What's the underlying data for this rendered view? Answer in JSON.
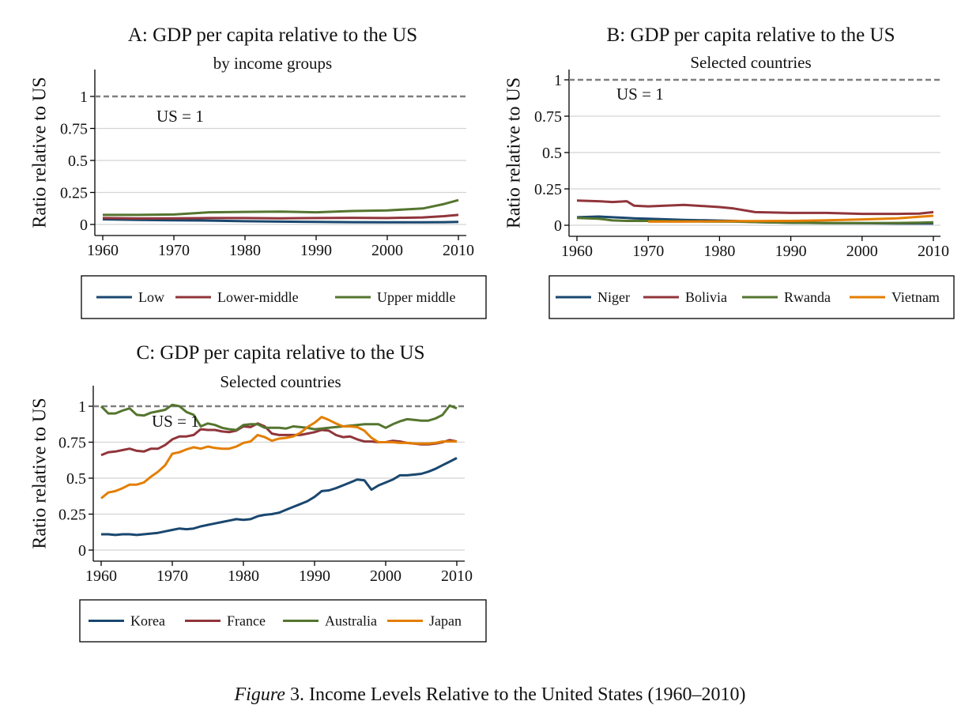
{
  "caption": {
    "italic": "Figure",
    "rest": " 3. Income Levels Relative to the United States (1960–2010)"
  },
  "colors": {
    "blue": "#1a476f",
    "red": "#90353b",
    "green": "#55752f",
    "orange": "#e37e00",
    "ref": "#7f7f7f"
  },
  "chart_data": [
    {
      "type": "line",
      "title": "A: GDP per capita relative to the US",
      "subtitle": "by income groups",
      "ylabel": "Ratio relative to US",
      "xlabel": "",
      "xlim": [
        1960,
        2010
      ],
      "ylim": [
        0,
        1.2
      ],
      "xticks": [
        "1960",
        "1970",
        "1980",
        "1990",
        "2000",
        "2010"
      ],
      "yticks": [
        "0",
        "0.25",
        "0.5",
        "0.75",
        "1"
      ],
      "reference_line": {
        "y": 1,
        "label": "US = 1"
      },
      "legend": "bottom",
      "x": [
        1960,
        1965,
        1970,
        1975,
        1980,
        1985,
        1990,
        1995,
        2000,
        2005,
        2008,
        2010
      ],
      "series": [
        {
          "name": "Low",
          "color": "#1a476f",
          "values": [
            0.04,
            0.035,
            0.033,
            0.03,
            0.025,
            0.022,
            0.02,
            0.018,
            0.017,
            0.017,
            0.018,
            0.02
          ]
        },
        {
          "name": "Lower-middle",
          "color": "#90353b",
          "values": [
            0.05,
            0.047,
            0.048,
            0.05,
            0.05,
            0.048,
            0.05,
            0.052,
            0.05,
            0.055,
            0.065,
            0.075
          ]
        },
        {
          "name": "Upper middle",
          "color": "#55752f",
          "values": [
            0.075,
            0.075,
            0.078,
            0.095,
            0.098,
            0.1,
            0.095,
            0.105,
            0.11,
            0.125,
            0.16,
            0.19
          ]
        }
      ]
    },
    {
      "type": "line",
      "title": "B: GDP per capita relative to the US",
      "subtitle": "Selected countries",
      "ylabel": "Ratio relative to US",
      "xlabel": "",
      "xlim": [
        1960,
        2010
      ],
      "ylim": [
        0,
        1
      ],
      "xticks": [
        "1960",
        "1970",
        "1980",
        "1990",
        "2000",
        "2010"
      ],
      "yticks": [
        "0",
        "0.25",
        "0.5",
        "0.75",
        "1"
      ],
      "reference_line": {
        "y": 1,
        "label": "US = 1"
      },
      "legend": "bottom",
      "x": [
        1960,
        1963,
        1965,
        1967,
        1968,
        1970,
        1975,
        1980,
        1982,
        1985,
        1990,
        1995,
        2000,
        2005,
        2008,
        2010
      ],
      "series": [
        {
          "name": "Niger",
          "color": "#1a476f",
          "values": [
            0.055,
            0.06,
            0.055,
            0.05,
            0.048,
            0.045,
            0.037,
            0.032,
            0.03,
            0.022,
            0.017,
            0.015,
            0.014,
            0.012,
            0.012,
            0.012
          ]
        },
        {
          "name": "Bolivia",
          "color": "#90353b",
          "values": [
            0.17,
            0.165,
            0.16,
            0.165,
            0.135,
            0.13,
            0.14,
            0.125,
            0.115,
            0.09,
            0.085,
            0.085,
            0.078,
            0.078,
            0.08,
            0.09
          ]
        },
        {
          "name": "Rwanda",
          "color": "#55752f",
          "values": [
            0.05,
            0.045,
            0.033,
            0.03,
            0.03,
            0.03,
            0.027,
            0.025,
            0.025,
            0.022,
            0.018,
            0.015,
            0.015,
            0.016,
            0.018,
            0.02
          ]
        },
        {
          "name": "Vietnam",
          "color": "#e37e00",
          "values": [
            null,
            null,
            null,
            null,
            null,
            0.025,
            0.025,
            0.027,
            0.028,
            0.028,
            0.03,
            0.034,
            0.04,
            0.048,
            0.058,
            0.065
          ]
        }
      ]
    },
    {
      "type": "line",
      "title": "C: GDP per capita relative to the US",
      "subtitle": "Selected countries",
      "ylabel": "Ratio relative to US",
      "xlabel": "",
      "xlim": [
        1960,
        2010
      ],
      "ylim": [
        0,
        1.05
      ],
      "xticks": [
        "1960",
        "1970",
        "1980",
        "1990",
        "2000",
        "2010"
      ],
      "yticks": [
        "0",
        "0.25",
        "0.5",
        "0.75",
        "1"
      ],
      "reference_line": {
        "y": 1,
        "label": "US = 1"
      },
      "legend": "bottom",
      "x": [
        1960,
        1961,
        1962,
        1963,
        1964,
        1965,
        1966,
        1967,
        1968,
        1969,
        1970,
        1971,
        1972,
        1973,
        1974,
        1975,
        1976,
        1977,
        1978,
        1979,
        1980,
        1981,
        1982,
        1983,
        1984,
        1985,
        1986,
        1987,
        1988,
        1989,
        1990,
        1991,
        1992,
        1993,
        1994,
        1995,
        1996,
        1997,
        1998,
        1999,
        2000,
        2001,
        2002,
        2003,
        2004,
        2005,
        2006,
        2007,
        2008,
        2009,
        2010
      ],
      "series": [
        {
          "name": "Korea",
          "color": "#1a476f",
          "values": [
            0.11,
            0.11,
            0.105,
            0.11,
            0.11,
            0.105,
            0.11,
            0.115,
            0.12,
            0.13,
            0.14,
            0.15,
            0.145,
            0.15,
            0.165,
            0.175,
            0.185,
            0.195,
            0.205,
            0.215,
            0.21,
            0.215,
            0.235,
            0.245,
            0.25,
            0.26,
            0.28,
            0.3,
            0.32,
            0.34,
            0.37,
            0.41,
            0.415,
            0.43,
            0.45,
            0.47,
            0.49,
            0.485,
            0.42,
            0.45,
            0.47,
            0.49,
            0.52,
            0.52,
            0.525,
            0.53,
            0.545,
            0.565,
            0.59,
            0.615,
            0.64
          ]
        },
        {
          "name": "France",
          "color": "#90353b",
          "values": [
            0.66,
            0.68,
            0.685,
            0.695,
            0.705,
            0.69,
            0.685,
            0.705,
            0.705,
            0.73,
            0.77,
            0.79,
            0.79,
            0.8,
            0.84,
            0.835,
            0.835,
            0.825,
            0.82,
            0.83,
            0.86,
            0.855,
            0.88,
            0.86,
            0.81,
            0.8,
            0.8,
            0.8,
            0.8,
            0.81,
            0.82,
            0.835,
            0.83,
            0.8,
            0.785,
            0.79,
            0.77,
            0.755,
            0.755,
            0.75,
            0.75,
            0.76,
            0.755,
            0.745,
            0.74,
            0.735,
            0.735,
            0.74,
            0.75,
            0.765,
            0.755
          ]
        },
        {
          "name": "Australia",
          "color": "#55752f",
          "values": [
            1.0,
            0.95,
            0.95,
            0.97,
            0.985,
            0.94,
            0.935,
            0.955,
            0.965,
            0.975,
            1.01,
            1.0,
            0.96,
            0.94,
            0.86,
            0.88,
            0.87,
            0.85,
            0.84,
            0.835,
            0.87,
            0.875,
            0.875,
            0.85,
            0.85,
            0.85,
            0.845,
            0.86,
            0.855,
            0.85,
            0.84,
            0.845,
            0.85,
            0.855,
            0.86,
            0.865,
            0.87,
            0.875,
            0.875,
            0.875,
            0.85,
            0.875,
            0.895,
            0.91,
            0.905,
            0.9,
            0.9,
            0.915,
            0.94,
            1.005,
            0.985
          ]
        },
        {
          "name": "Japan",
          "color": "#e37e00",
          "values": [
            0.36,
            0.4,
            0.41,
            0.43,
            0.455,
            0.455,
            0.47,
            0.51,
            0.545,
            0.59,
            0.67,
            0.68,
            0.7,
            0.715,
            0.705,
            0.72,
            0.71,
            0.705,
            0.705,
            0.72,
            0.745,
            0.755,
            0.8,
            0.785,
            0.76,
            0.775,
            0.78,
            0.79,
            0.815,
            0.855,
            0.885,
            0.925,
            0.905,
            0.88,
            0.86,
            0.86,
            0.855,
            0.83,
            0.78,
            0.75,
            0.75,
            0.75,
            0.745,
            0.745,
            0.74,
            0.74,
            0.74,
            0.745,
            0.755,
            0.755,
            0.755
          ]
        }
      ]
    }
  ]
}
